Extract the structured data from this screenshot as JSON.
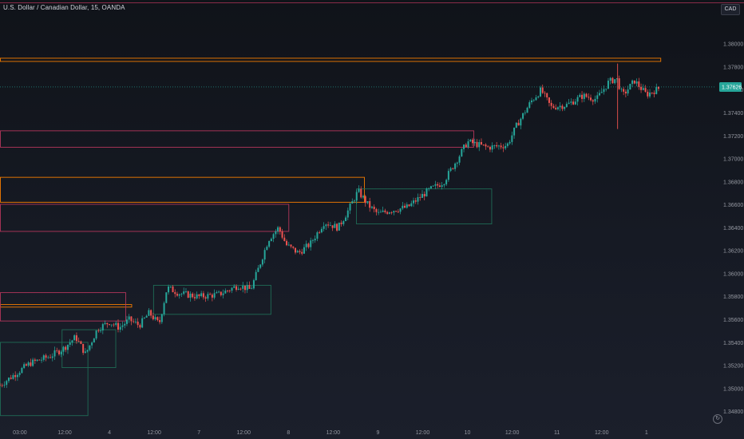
{
  "header": {
    "title": "U.S. Dollar / Canadian Dollar, 15, OANDA"
  },
  "currency_button": {
    "label": "CAD"
  },
  "colors": {
    "up": "#26a69a",
    "down": "#ef5350",
    "supply_zone": "#f57c00",
    "resistance_zone": "#b2365a",
    "demand_zone": "#1f6b55",
    "last_price_bg": "#26a69a"
  },
  "icons": {
    "replay": "replay-icon"
  },
  "chart_data": {
    "type": "candlestick",
    "title": "U.S. Dollar / Canadian Dollar, 15, OANDA",
    "currency": "CAD",
    "ylim": [
      1.347,
      1.383
    ],
    "ytick_labels": [
      "1.38000",
      "1.37800",
      "1.37600",
      "1.37400",
      "1.37200",
      "1.37000",
      "1.36800",
      "1.36600",
      "1.36400",
      "1.36200",
      "1.36000",
      "1.35800",
      "1.35600",
      "1.35400",
      "1.35200",
      "1.35000",
      "1.34800"
    ],
    "ytick_values": [
      1.38,
      1.378,
      1.376,
      1.374,
      1.372,
      1.37,
      1.368,
      1.366,
      1.364,
      1.362,
      1.36,
      1.358,
      1.356,
      1.354,
      1.352,
      1.35,
      1.348
    ],
    "xlim": [
      0,
      36
    ],
    "xtick_labels": [
      "03:00",
      "12:00",
      "4",
      "12:00",
      "7",
      "12:00",
      "8",
      "12:00",
      "9",
      "12:00",
      "10",
      "12:00",
      "11",
      "12:00",
      "1"
    ],
    "xtick_positions": [
      1,
      3.25,
      5.5,
      7.75,
      10,
      12.25,
      14.5,
      16.75,
      19,
      21.25,
      23.5,
      25.75,
      28,
      30.25,
      32.5
    ],
    "last_price": 1.37626,
    "last_price_label": "1.37626",
    "grid": false,
    "price_path": [
      [
        0,
        1.3503
      ],
      [
        1.5,
        1.3522
      ],
      [
        2.5,
        1.3528
      ],
      [
        3.2,
        1.3535
      ],
      [
        3.8,
        1.3545
      ],
      [
        4.3,
        1.353
      ],
      [
        4.9,
        1.3552
      ],
      [
        5.5,
        1.3558
      ],
      [
        6.0,
        1.3553
      ],
      [
        6.5,
        1.356
      ],
      [
        7.0,
        1.3555
      ],
      [
        7.5,
        1.3566
      ],
      [
        8.0,
        1.3556
      ],
      [
        8.4,
        1.3588
      ],
      [
        9.0,
        1.3583
      ],
      [
        10.0,
        1.358
      ],
      [
        11.0,
        1.3582
      ],
      [
        12.0,
        1.359
      ],
      [
        12.6,
        1.3586
      ],
      [
        13.0,
        1.3605
      ],
      [
        13.5,
        1.363
      ],
      [
        14.0,
        1.364
      ],
      [
        14.4,
        1.3625
      ],
      [
        15.0,
        1.3618
      ],
      [
        15.6,
        1.3626
      ],
      [
        16.3,
        1.3645
      ],
      [
        17.0,
        1.364
      ],
      [
        17.5,
        1.3655
      ],
      [
        18.0,
        1.3672
      ],
      [
        18.5,
        1.366
      ],
      [
        19.0,
        1.3652
      ],
      [
        19.6,
        1.3655
      ],
      [
        20.5,
        1.3658
      ],
      [
        21.5,
        1.3672
      ],
      [
        22.3,
        1.368
      ],
      [
        23.0,
        1.37
      ],
      [
        23.5,
        1.3715
      ],
      [
        24.5,
        1.371
      ],
      [
        25.5,
        1.3712
      ],
      [
        26.0,
        1.373
      ],
      [
        26.7,
        1.375
      ],
      [
        27.2,
        1.376
      ],
      [
        27.7,
        1.3745
      ],
      [
        28.5,
        1.3747
      ],
      [
        29.3,
        1.3755
      ],
      [
        30.0,
        1.3752
      ],
      [
        30.6,
        1.3767
      ],
      [
        31.0,
        1.377
      ],
      [
        31.3,
        1.3755
      ],
      [
        31.9,
        1.3768
      ],
      [
        32.5,
        1.3756
      ],
      [
        33.2,
        1.3762
      ]
    ],
    "zones": [
      {
        "kind": "supply",
        "x0": 0,
        "x1": 33.2,
        "y0": 1.37852,
        "y1": 1.3788
      },
      {
        "kind": "supply",
        "x0": 0,
        "x1": 18.3,
        "y0": 1.36626,
        "y1": 1.36843
      },
      {
        "kind": "supply",
        "x0": 0,
        "x1": 6.6,
        "y0": 1.35713,
        "y1": 1.35735
      },
      {
        "kind": "resistance",
        "x0": 0,
        "x1": 23.8,
        "y0": 1.37105,
        "y1": 1.37248
      },
      {
        "kind": "resistance",
        "x0": 0,
        "x1": 14.5,
        "y0": 1.36372,
        "y1": 1.36608
      },
      {
        "kind": "resistance",
        "x0": 0,
        "x1": 6.3,
        "y0": 1.35592,
        "y1": 1.35839
      },
      {
        "kind": "demand",
        "x0": 17.9,
        "x1": 24.7,
        "y0": 1.36437,
        "y1": 1.36742
      },
      {
        "kind": "demand",
        "x0": 7.7,
        "x1": 13.6,
        "y0": 1.3565,
        "y1": 1.35903
      },
      {
        "kind": "demand",
        "x0": 3.1,
        "x1": 5.8,
        "y0": 1.35186,
        "y1": 1.35516
      },
      {
        "kind": "demand",
        "x0": 0,
        "x1": 4.4,
        "y0": 1.34768,
        "y1": 1.35406
      }
    ]
  }
}
